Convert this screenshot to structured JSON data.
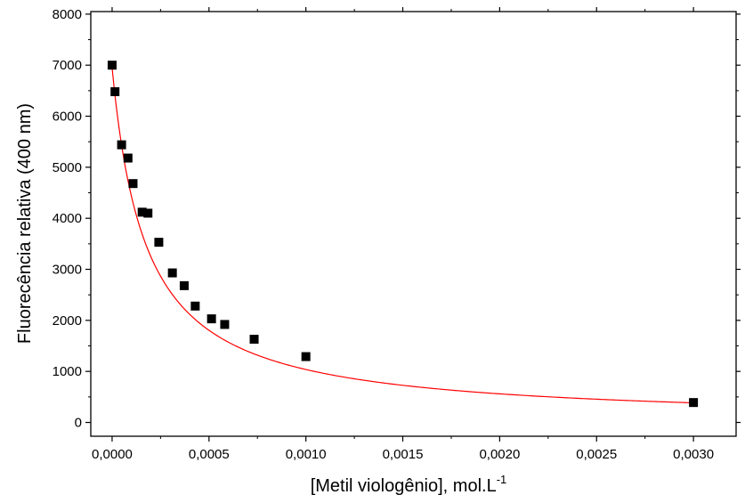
{
  "chart_data": {
    "type": "scatter",
    "xlabel_main": "[Metil viologênio], mol.L",
    "xlabel_sup": "-1",
    "ylabel": "Fluorecência relativa (400 nm)",
    "xlim": [
      -0.00011,
      0.00322
    ],
    "ylim": [
      -270,
      8050
    ],
    "xticks": [
      0,
      0.0005,
      0.001,
      0.0015,
      0.002,
      0.0025,
      0.003
    ],
    "xtick_labels": [
      "0,0000",
      "0,0005",
      "0,0010",
      "0,0015",
      "0,0020",
      "0,0025",
      "0,0030"
    ],
    "yticks": [
      0,
      1000,
      2000,
      3000,
      4000,
      5000,
      6000,
      7000,
      8000
    ],
    "ytick_labels": [
      "0",
      "1000",
      "2000",
      "3000",
      "4000",
      "5000",
      "6000",
      "7000",
      "8000"
    ],
    "grid": false,
    "series": [
      {
        "marker": "square",
        "color": "#000000",
        "x": [
          0.0,
          1.5e-05,
          4.9e-05,
          8.2e-05,
          0.000108,
          0.000155,
          0.000185,
          0.000241,
          0.000311,
          0.000372,
          0.000429,
          0.000513,
          0.000581,
          0.000733,
          0.001,
          0.003
        ],
        "y": [
          7000,
          6480,
          5440,
          5180,
          4680,
          4120,
          4100,
          3530,
          2930,
          2680,
          2280,
          2030,
          1920,
          1630,
          1290,
          390
        ]
      },
      {
        "type": "line",
        "color": "#ff0000",
        "fit": "stern-volmer",
        "params": {
          "F0": 6950,
          "Ksv": 5700
        }
      }
    ]
  }
}
